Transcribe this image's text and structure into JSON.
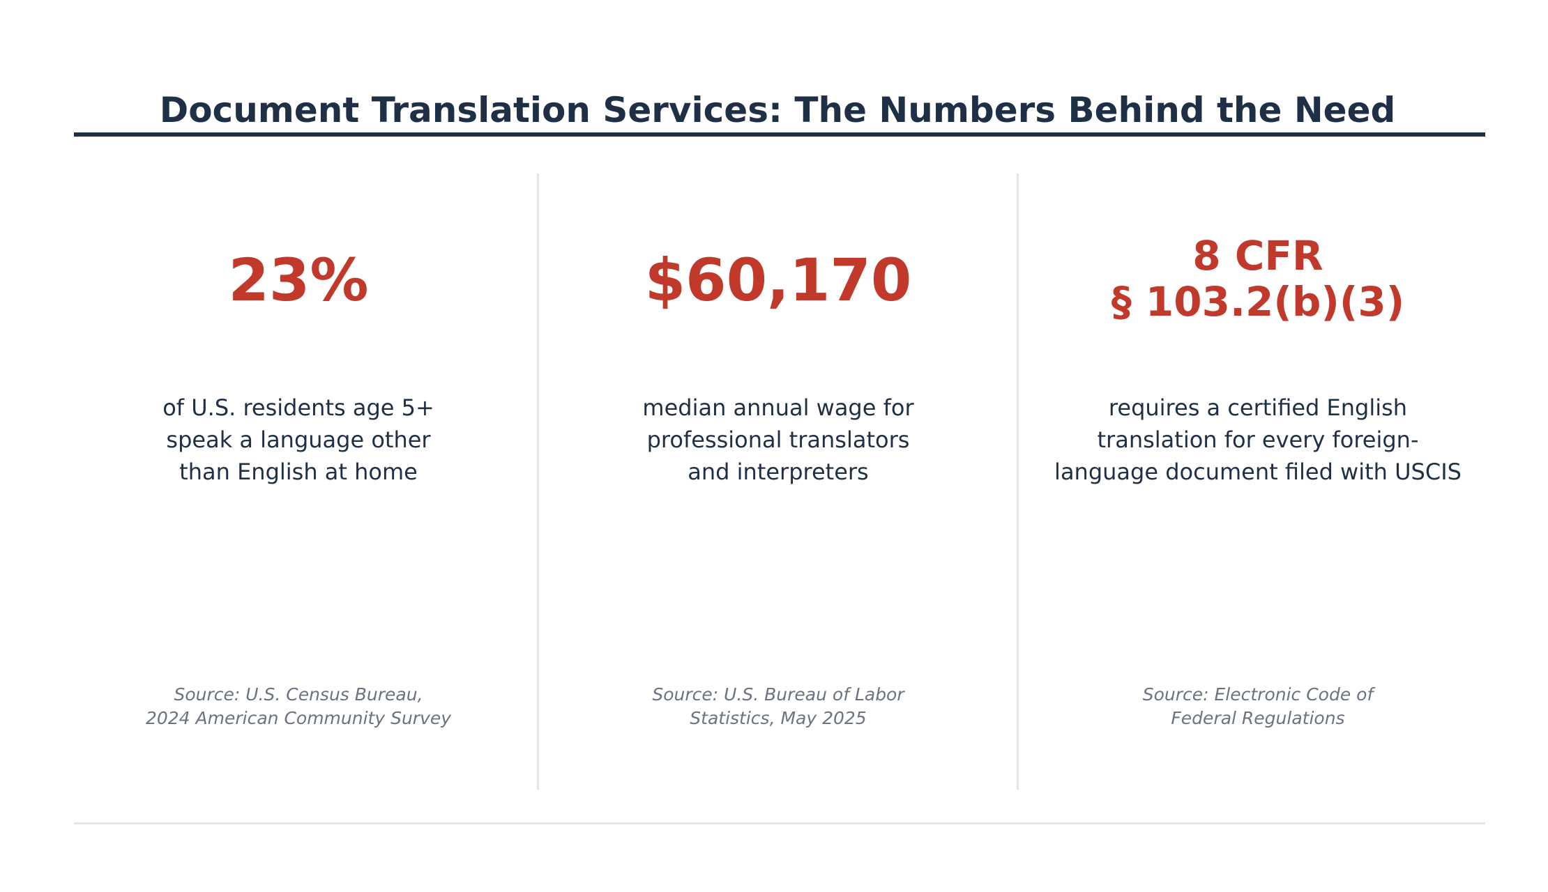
{
  "header": {
    "title": "Document Translation Services: The Numbers Behind the Need"
  },
  "stats": [
    {
      "value": "23%",
      "description_lines": [
        "of U.S. residents age 5+",
        "speak a language other",
        "than English at home"
      ],
      "source_lines": [
        "Source: U.S. Census Bureau,",
        "2024 American Community Survey"
      ]
    },
    {
      "value": "$60,170",
      "description_lines": [
        "median annual wage for",
        "professional translators",
        "and interpreters"
      ],
      "source_lines": [
        "Source: U.S. Bureau of Labor",
        "Statistics, May 2025"
      ]
    },
    {
      "value_lines": [
        "8 CFR",
        "§ 103.2(b)(3)"
      ],
      "description_lines": [
        "requires a certified English",
        "translation for every foreign-",
        "language document filed with USCIS"
      ],
      "source_lines": [
        "Source: Electronic Code of",
        "Federal Regulations"
      ]
    }
  ],
  "colors": {
    "title": "#1f2f45",
    "accent": "#c0392b",
    "body_text": "#1f2f45",
    "source_text": "#6b7280",
    "divider": "#e3e5e8"
  }
}
